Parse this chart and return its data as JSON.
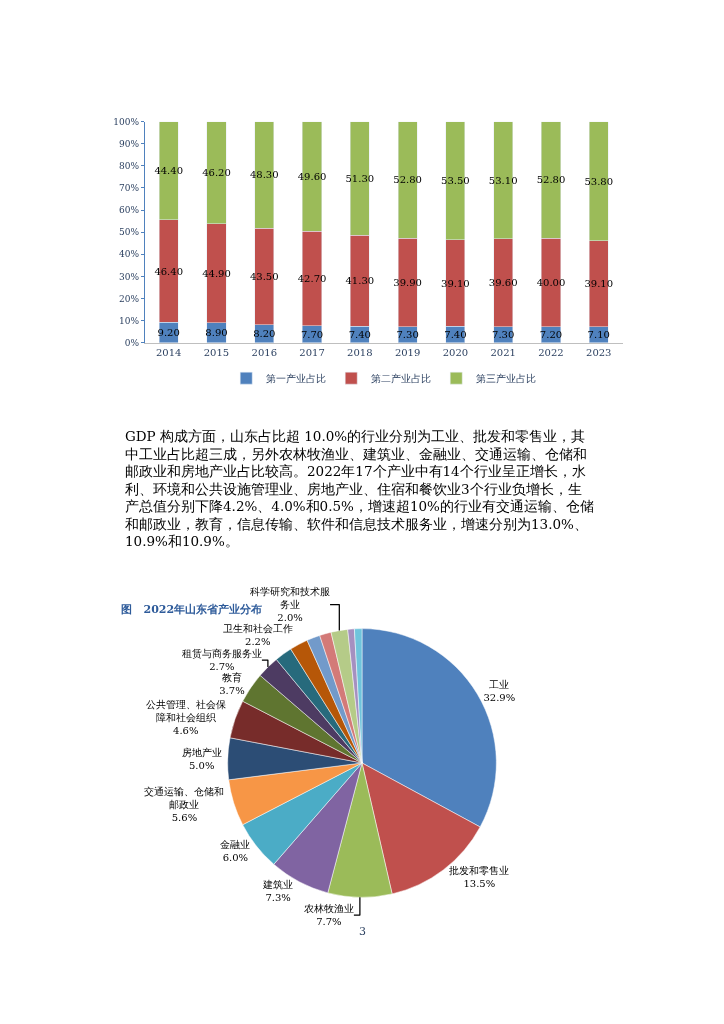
{
  "chart_data": [
    {
      "type": "bar",
      "stacked": true,
      "categories": [
        "2014",
        "2015",
        "2016",
        "2017",
        "2018",
        "2019",
        "2020",
        "2021",
        "2022",
        "2023"
      ],
      "ylim": [
        0,
        100
      ],
      "yticks": [
        {
          "value": 0,
          "label": "0%"
        },
        {
          "value": 10,
          "label": "10%"
        },
        {
          "value": 20,
          "label": "20%"
        },
        {
          "value": 30,
          "label": "30%"
        },
        {
          "value": 40,
          "label": "40%"
        },
        {
          "value": 50,
          "label": "50%"
        },
        {
          "value": 60,
          "label": "60%"
        },
        {
          "value": 70,
          "label": "70%"
        },
        {
          "value": 80,
          "label": "80%"
        },
        {
          "value": 90,
          "label": "90%"
        },
        {
          "value": 100,
          "label": "100%"
        }
      ],
      "legend": "bottom",
      "series": [
        {
          "name": "第一产业占比",
          "color": "#4f81bd",
          "values": [
            9.2,
            8.9,
            8.2,
            7.7,
            7.4,
            7.3,
            7.4,
            7.3,
            7.2,
            7.1
          ],
          "value_labels": [
            "9.20",
            "8.90",
            "8.20",
            "7.70",
            "7.40",
            "7.30",
            "7.40",
            "7.30",
            "7.20",
            "7.10"
          ]
        },
        {
          "name": "第二产业占比",
          "color": "#c0504d",
          "values": [
            46.4,
            44.9,
            43.5,
            42.7,
            41.3,
            39.9,
            39.1,
            39.6,
            40.0,
            39.1
          ],
          "value_labels": [
            "46.40",
            "44.90",
            "43.50",
            "42.70",
            "41.30",
            "39.90",
            "39.10",
            "39.60",
            "40.00",
            "39.10"
          ]
        },
        {
          "name": "第三产业占比",
          "color": "#9bbb59",
          "values": [
            44.4,
            46.2,
            48.3,
            49.6,
            51.3,
            52.8,
            53.5,
            53.1,
            52.8,
            53.8
          ],
          "value_labels": [
            "44.40",
            "46.20",
            "48.30",
            "49.60",
            "51.30",
            "52.80",
            "53.50",
            "53.10",
            "52.80",
            "53.80"
          ]
        }
      ],
      "annotations": [
        "GDP 构成方面，山东占比超 10.0%的行业分别为工业、批发和零售业，其中工业占比超三成，另外农林牧渔业、建筑业、金融业、交通运输、仓储和邮政业和房地产业占比较高。2022年17个产业中有14个行业呈正增长，水利、环境和公共设施管理业、房地产业、住宿和餐饮业3个行业负增长，生产总值分别下降4.2%、4.0%和0.5%，增速超10%的行业有交通运输、仓储和邮政业，教育，信息传输、软件和信息技术服务业，增速分别为13.0%、10.9%和10.9%。"
      ]
    },
    {
      "type": "pie",
      "title": "图   2022年山东省产业分布",
      "categories": [
        "工业",
        "批发和零售业",
        "农林牧渔业",
        "建筑业",
        "金融业",
        "交通运输、仓储和邮政业",
        "房地产业",
        "公共管理、社会保障和社会组织",
        "教育",
        "租赁与商务服务业",
        null,
        "卫生和社会工作",
        null,
        null,
        "科学研究和技术服务业",
        null,
        null
      ],
      "values": [
        32.9,
        13.5,
        7.7,
        7.3,
        6.0,
        5.6,
        5.0,
        4.6,
        3.7,
        2.7,
        2.1,
        2.2,
        1.6,
        1.4,
        2.0,
        0.8,
        0.9
      ],
      "value_labels": [
        "32.9%",
        "13.5%",
        "7.7%",
        "7.3%",
        "6.0%",
        "5.6%",
        "5.0%",
        "4.6%",
        "3.7%",
        "2.7%",
        null,
        "2.2%",
        null,
        null,
        "2.0%",
        null,
        null
      ],
      "colors": [
        "#4f81bd",
        "#c0504d",
        "#9bbb59",
        "#8064a2",
        "#4bacc6",
        "#f79646",
        "#2c4d75",
        "#772c2a",
        "#5f7530",
        "#4d3b62",
        "#276a7c",
        "#b65708",
        "#729aca",
        "#d37a78",
        "#b5cb88",
        "#a590c0",
        "#6fc4dc"
      ],
      "annotations": [
        "3"
      ]
    }
  ]
}
